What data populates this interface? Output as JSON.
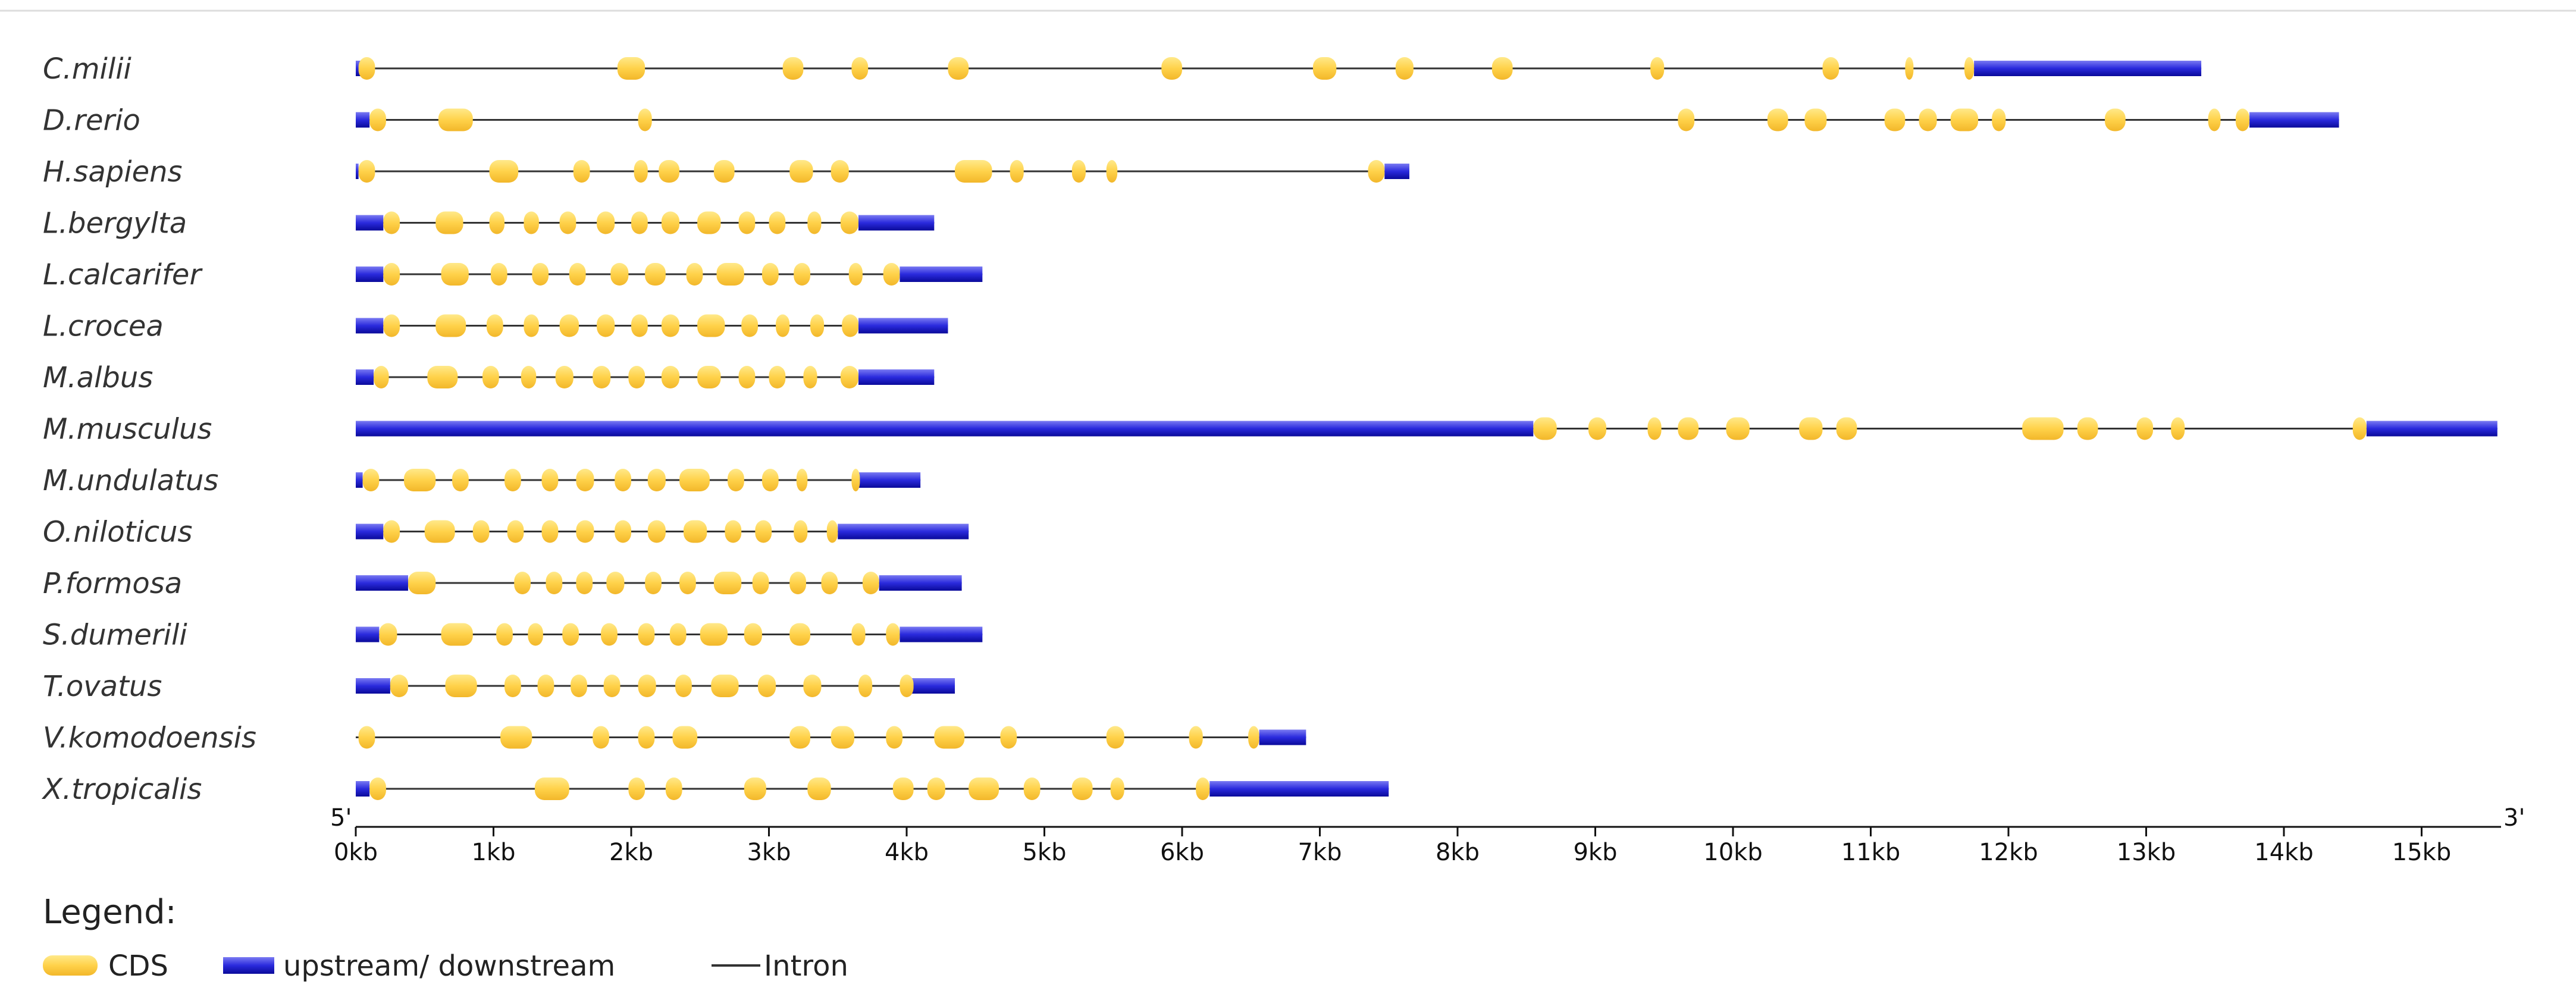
{
  "figure": {
    "five_prime": "5'",
    "three_prime": "3'",
    "axis_ticks": [
      "0kb",
      "1kb",
      "2kb",
      "3kb",
      "4kb",
      "5kb",
      "6kb",
      "7kb",
      "8kb",
      "9kb",
      "10kb",
      "11kb",
      "12kb",
      "13kb",
      "14kb",
      "15kb"
    ],
    "legend": {
      "title": "Legend:",
      "items": [
        {
          "label": "CDS",
          "kind": "cds",
          "color": "#FFD24A"
        },
        {
          "label": "upstream/ downstream",
          "kind": "utr",
          "color": "#2F2FE0"
        },
        {
          "label": "Intron",
          "kind": "intron",
          "color": "#333333"
        }
      ]
    }
  },
  "chart_data": {
    "type": "gene_structure",
    "x_unit": "kb",
    "xlim": [
      0,
      15.5
    ],
    "genes": [
      {
        "name": "C.milii",
        "length": 13.4,
        "utr": [
          [
            0,
            0.04
          ],
          [
            11.75,
            13.4
          ]
        ],
        "cds": [
          [
            0.02,
            0.14
          ],
          [
            1.9,
            2.1
          ],
          [
            3.1,
            3.25
          ],
          [
            3.6,
            3.72
          ],
          [
            4.3,
            4.45
          ],
          [
            5.85,
            6.0
          ],
          [
            6.95,
            7.12
          ],
          [
            7.55,
            7.68
          ],
          [
            8.25,
            8.4
          ],
          [
            9.4,
            9.5
          ],
          [
            10.65,
            10.77
          ],
          [
            11.25,
            11.3
          ],
          [
            11.68,
            11.75
          ]
        ]
      },
      {
        "name": "D.rerio",
        "length": 14.4,
        "utr": [
          [
            0,
            0.1
          ],
          [
            13.75,
            14.4
          ]
        ],
        "cds": [
          [
            0.1,
            0.22
          ],
          [
            0.6,
            0.85
          ],
          [
            2.05,
            2.15
          ],
          [
            9.6,
            9.72
          ],
          [
            10.25,
            10.4
          ],
          [
            10.52,
            10.68
          ],
          [
            11.1,
            11.25
          ],
          [
            11.35,
            11.48
          ],
          [
            11.58,
            11.78
          ],
          [
            11.88,
            11.98
          ],
          [
            12.7,
            12.85
          ],
          [
            13.45,
            13.54
          ],
          [
            13.65,
            13.75
          ]
        ]
      },
      {
        "name": "H.sapiens",
        "length": 7.65,
        "utr": [
          [
            0,
            0.02
          ],
          [
            7.47,
            7.65
          ]
        ],
        "cds": [
          [
            0.02,
            0.14
          ],
          [
            0.97,
            1.18
          ],
          [
            1.58,
            1.7
          ],
          [
            2.02,
            2.12
          ],
          [
            2.2,
            2.35
          ],
          [
            2.6,
            2.75
          ],
          [
            3.15,
            3.32
          ],
          [
            3.45,
            3.58
          ],
          [
            4.35,
            4.62
          ],
          [
            4.75,
            4.85
          ],
          [
            5.2,
            5.3
          ],
          [
            5.45,
            5.53
          ],
          [
            7.35,
            7.47
          ]
        ]
      },
      {
        "name": "L.bergylta",
        "length": 4.2,
        "utr": [
          [
            0,
            0.2
          ],
          [
            3.65,
            4.2
          ]
        ],
        "cds": [
          [
            0.2,
            0.32
          ],
          [
            0.58,
            0.78
          ],
          [
            0.97,
            1.08
          ],
          [
            1.22,
            1.33
          ],
          [
            1.48,
            1.6
          ],
          [
            1.75,
            1.88
          ],
          [
            2.0,
            2.12
          ],
          [
            2.22,
            2.35
          ],
          [
            2.48,
            2.65
          ],
          [
            2.78,
            2.9
          ],
          [
            3.0,
            3.12
          ],
          [
            3.28,
            3.38
          ],
          [
            3.52,
            3.65
          ]
        ]
      },
      {
        "name": "L.calcarifer",
        "length": 4.55,
        "utr": [
          [
            0,
            0.2
          ],
          [
            3.95,
            4.55
          ]
        ],
        "cds": [
          [
            0.2,
            0.32
          ],
          [
            0.62,
            0.82
          ],
          [
            0.98,
            1.1
          ],
          [
            1.28,
            1.4
          ],
          [
            1.55,
            1.67
          ],
          [
            1.85,
            1.98
          ],
          [
            2.1,
            2.25
          ],
          [
            2.4,
            2.52
          ],
          [
            2.62,
            2.82
          ],
          [
            2.95,
            3.07
          ],
          [
            3.18,
            3.3
          ],
          [
            3.58,
            3.68
          ],
          [
            3.83,
            3.95
          ]
        ]
      },
      {
        "name": "L.crocea",
        "length": 4.3,
        "utr": [
          [
            0,
            0.2
          ],
          [
            3.65,
            4.3
          ]
        ],
        "cds": [
          [
            0.2,
            0.32
          ],
          [
            0.58,
            0.8
          ],
          [
            0.95,
            1.07
          ],
          [
            1.22,
            1.33
          ],
          [
            1.48,
            1.62
          ],
          [
            1.75,
            1.88
          ],
          [
            2.0,
            2.12
          ],
          [
            2.22,
            2.35
          ],
          [
            2.48,
            2.68
          ],
          [
            2.8,
            2.92
          ],
          [
            3.05,
            3.15
          ],
          [
            3.3,
            3.4
          ],
          [
            3.53,
            3.65
          ]
        ]
      },
      {
        "name": "M.albus",
        "length": 4.2,
        "utr": [
          [
            0,
            0.13
          ],
          [
            3.65,
            4.2
          ]
        ],
        "cds": [
          [
            0.13,
            0.24
          ],
          [
            0.52,
            0.74
          ],
          [
            0.92,
            1.04
          ],
          [
            1.2,
            1.31
          ],
          [
            1.45,
            1.58
          ],
          [
            1.72,
            1.85
          ],
          [
            1.98,
            2.1
          ],
          [
            2.22,
            2.35
          ],
          [
            2.48,
            2.65
          ],
          [
            2.78,
            2.9
          ],
          [
            3.0,
            3.12
          ],
          [
            3.25,
            3.35
          ],
          [
            3.52,
            3.65
          ]
        ]
      },
      {
        "name": "M.musculus",
        "length": 15.55,
        "utr": [
          [
            0,
            8.55
          ],
          [
            14.6,
            15.55
          ]
        ],
        "cds": [
          [
            8.55,
            8.72
          ],
          [
            8.95,
            9.08
          ],
          [
            9.38,
            9.48
          ],
          [
            9.6,
            9.75
          ],
          [
            9.95,
            10.12
          ],
          [
            10.48,
            10.65
          ],
          [
            10.75,
            10.9
          ],
          [
            12.1,
            12.4
          ],
          [
            12.5,
            12.65
          ],
          [
            12.93,
            13.05
          ],
          [
            13.18,
            13.28
          ],
          [
            14.5,
            14.6
          ]
        ]
      },
      {
        "name": "M.undulatus",
        "length": 4.1,
        "utr": [
          [
            0,
            0.05
          ],
          [
            3.65,
            4.1
          ]
        ],
        "cds": [
          [
            0.05,
            0.17
          ],
          [
            0.35,
            0.58
          ],
          [
            0.7,
            0.82
          ],
          [
            1.08,
            1.2
          ],
          [
            1.35,
            1.47
          ],
          [
            1.6,
            1.73
          ],
          [
            1.88,
            2.0
          ],
          [
            2.12,
            2.25
          ],
          [
            2.35,
            2.57
          ],
          [
            2.7,
            2.82
          ],
          [
            2.95,
            3.07
          ],
          [
            3.2,
            3.28
          ],
          [
            3.6,
            3.65
          ]
        ]
      },
      {
        "name": "O.niloticus",
        "length": 4.45,
        "utr": [
          [
            0,
            0.2
          ],
          [
            3.5,
            4.45
          ]
        ],
        "cds": [
          [
            0.2,
            0.32
          ],
          [
            0.5,
            0.72
          ],
          [
            0.85,
            0.97
          ],
          [
            1.1,
            1.22
          ],
          [
            1.35,
            1.47
          ],
          [
            1.6,
            1.73
          ],
          [
            1.88,
            2.0
          ],
          [
            2.12,
            2.25
          ],
          [
            2.38,
            2.55
          ],
          [
            2.68,
            2.8
          ],
          [
            2.9,
            3.02
          ],
          [
            3.18,
            3.28
          ],
          [
            3.42,
            3.5
          ]
        ]
      },
      {
        "name": "P.formosa",
        "length": 4.4,
        "utr": [
          [
            0,
            0.38
          ],
          [
            3.8,
            4.4
          ]
        ],
        "cds": [
          [
            0.38,
            0.58
          ],
          [
            1.15,
            1.27
          ],
          [
            1.38,
            1.5
          ],
          [
            1.6,
            1.72
          ],
          [
            1.82,
            1.95
          ],
          [
            2.1,
            2.22
          ],
          [
            2.35,
            2.47
          ],
          [
            2.6,
            2.8
          ],
          [
            2.88,
            3.0
          ],
          [
            3.15,
            3.27
          ],
          [
            3.38,
            3.5
          ],
          [
            3.68,
            3.8
          ]
        ]
      },
      {
        "name": "S.dumerili",
        "length": 4.55,
        "utr": [
          [
            0,
            0.17
          ],
          [
            3.95,
            4.55
          ]
        ],
        "cds": [
          [
            0.17,
            0.3
          ],
          [
            0.62,
            0.85
          ],
          [
            1.02,
            1.14
          ],
          [
            1.25,
            1.36
          ],
          [
            1.5,
            1.62
          ],
          [
            1.78,
            1.9
          ],
          [
            2.05,
            2.17
          ],
          [
            2.28,
            2.4
          ],
          [
            2.5,
            2.7
          ],
          [
            2.82,
            2.95
          ],
          [
            3.15,
            3.3
          ],
          [
            3.6,
            3.7
          ],
          [
            3.85,
            3.95
          ]
        ]
      },
      {
        "name": "T.ovatus",
        "length": 4.35,
        "utr": [
          [
            0,
            0.25
          ],
          [
            4.02,
            4.35
          ]
        ],
        "cds": [
          [
            0.25,
            0.38
          ],
          [
            0.65,
            0.88
          ],
          [
            1.08,
            1.2
          ],
          [
            1.32,
            1.44
          ],
          [
            1.56,
            1.68
          ],
          [
            1.8,
            1.92
          ],
          [
            2.05,
            2.18
          ],
          [
            2.32,
            2.44
          ],
          [
            2.58,
            2.78
          ],
          [
            2.92,
            3.05
          ],
          [
            3.25,
            3.38
          ],
          [
            3.65,
            3.75
          ],
          [
            3.95,
            4.05
          ]
        ]
      },
      {
        "name": "V.komodoensis",
        "length": 6.9,
        "utr": [
          [
            6.56,
            6.9
          ]
        ],
        "cds": [
          [
            0.02,
            0.14
          ],
          [
            1.05,
            1.28
          ],
          [
            1.72,
            1.84
          ],
          [
            2.05,
            2.17
          ],
          [
            2.3,
            2.48
          ],
          [
            3.15,
            3.3
          ],
          [
            3.45,
            3.62
          ],
          [
            3.85,
            3.97
          ],
          [
            4.2,
            4.42
          ],
          [
            4.68,
            4.8
          ],
          [
            5.45,
            5.58
          ],
          [
            6.05,
            6.15
          ],
          [
            6.48,
            6.56
          ]
        ]
      },
      {
        "name": "X.tropicalis",
        "length": 7.5,
        "utr": [
          [
            0,
            0.1
          ],
          [
            6.2,
            7.5
          ]
        ],
        "cds": [
          [
            0.1,
            0.22
          ],
          [
            1.3,
            1.55
          ],
          [
            1.98,
            2.1
          ],
          [
            2.25,
            2.37
          ],
          [
            2.82,
            2.98
          ],
          [
            3.28,
            3.45
          ],
          [
            3.9,
            4.05
          ],
          [
            4.15,
            4.28
          ],
          [
            4.45,
            4.67
          ],
          [
            4.85,
            4.97
          ],
          [
            5.2,
            5.35
          ],
          [
            5.48,
            5.58
          ],
          [
            6.1,
            6.2
          ]
        ]
      }
    ]
  }
}
